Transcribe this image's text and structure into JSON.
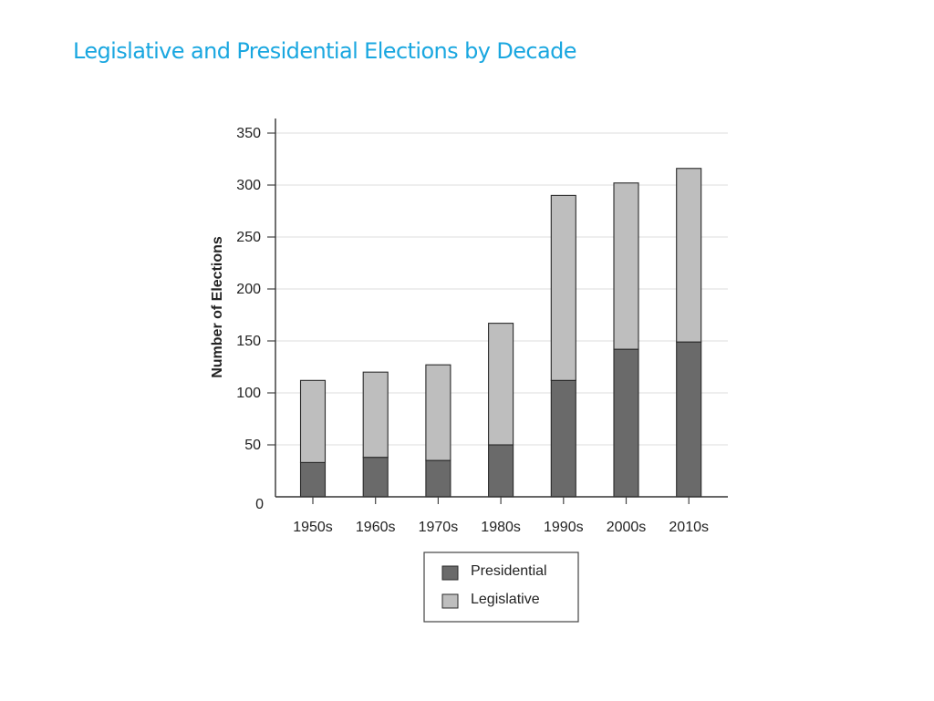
{
  "slide": {
    "title": "Legislative and Presidential Elections by Decade",
    "title_color": "#1aa7e0"
  },
  "chart_data": {
    "type": "bar",
    "stacked": true,
    "categories": [
      "1950s",
      "1960s",
      "1970s",
      "1980s",
      "1990s",
      "2000s",
      "2010s"
    ],
    "series": [
      {
        "name": "Presidential",
        "color": "#6a6a6a",
        "values": [
          33,
          38,
          35,
          50,
          112,
          142,
          149
        ]
      },
      {
        "name": "Legislative",
        "color": "#bebebe",
        "values": [
          79,
          82,
          92,
          117,
          178,
          160,
          167
        ]
      }
    ],
    "totals": [
      112,
      120,
      127,
      167,
      290,
      302,
      316
    ],
    "ylabel": "Number of Elections",
    "xlabel": "",
    "ylim": [
      0,
      350
    ],
    "yticks": [
      0,
      50,
      100,
      150,
      200,
      250,
      300,
      350
    ],
    "grid": true,
    "legend_position": "bottom-center"
  }
}
